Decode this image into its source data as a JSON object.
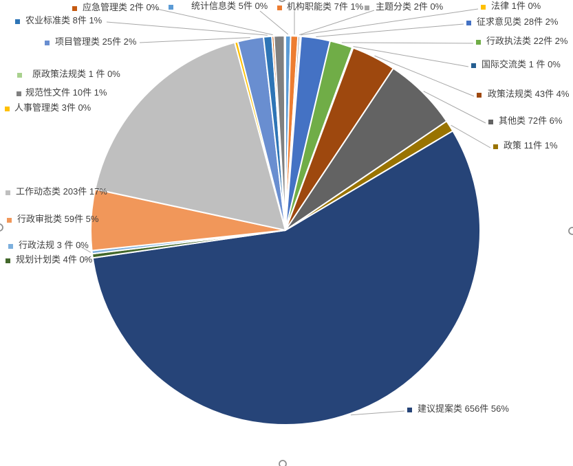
{
  "chart_data": {
    "type": "pie",
    "title": "",
    "unit": "件",
    "total": 1166,
    "direction": "clockwise",
    "start_angle_deg": 0,
    "legend_position": "none",
    "slice_border_color": "#FFFFFF",
    "leader_line_color": "#A6A6A6",
    "label_text_color": "#3F3F3F",
    "series": [
      {
        "name": "统计信息类",
        "value": 5,
        "pct": "0%",
        "label": "统计信息类 5件 0%",
        "color": "#5B9BD5"
      },
      {
        "name": "机构职能类",
        "value": 7,
        "pct": "1%",
        "label": "机构职能类 7件 1%",
        "color": "#ED7D31"
      },
      {
        "name": "主题分类",
        "value": 2,
        "pct": "0%",
        "label": "主题分类 2件 0%",
        "color": "#A5A5A5"
      },
      {
        "name": "法律",
        "value": 1,
        "pct": "0%",
        "label": "法律 1件 0%",
        "color": "#FFC000"
      },
      {
        "name": "征求意见类",
        "value": 28,
        "pct": "2%",
        "label": "征求意见类 28件 2%",
        "color": "#4472C4"
      },
      {
        "name": "行政执法类",
        "value": 22,
        "pct": "2%",
        "label": "行政执法类 22件 2%",
        "color": "#70AD47"
      },
      {
        "name": "国际交流类",
        "value": 1,
        "pct": "0%",
        "label": "国际交流类 1 件 0%",
        "color": "#255E91"
      },
      {
        "name": "政策法规类",
        "value": 43,
        "pct": "4%",
        "label": "政策法规类 43件 4%",
        "color": "#9E480E"
      },
      {
        "name": "其他类",
        "value": 72,
        "pct": "6%",
        "label": "其他类 72件 6%",
        "color": "#636363"
      },
      {
        "name": "政策",
        "value": 11,
        "pct": "1%",
        "label": "政策 11件 1%",
        "color": "#997300"
      },
      {
        "name": "建议提案类",
        "value": 656,
        "pct": "56%",
        "label": "建议提案类 656件 56%",
        "color": "#264478"
      },
      {
        "name": "规划计划类",
        "value": 4,
        "pct": "0%",
        "label": "规划计划类 4件 0%",
        "color": "#43682B"
      },
      {
        "name": "行政法规",
        "value": 3,
        "pct": "0%",
        "label": "行政法规 3 件 0%",
        "color": "#7CAFDD"
      },
      {
        "name": "行政审批类",
        "value": 59,
        "pct": "5%",
        "label": "行政审批类 59件 5%",
        "color": "#F1975A"
      },
      {
        "name": "工作动态类",
        "value": 203,
        "pct": "17%",
        "label": "工作动态类 203件 17%",
        "color": "#BFBFBF"
      },
      {
        "name": "人事管理类",
        "value": 3,
        "pct": "0%",
        "label": "人事管理类 3件 0%",
        "color": "#FFC000"
      },
      {
        "name": "项目管理类",
        "value": 25,
        "pct": "2%",
        "label": "项目管理类 25件 2%",
        "color": "#698ED0"
      },
      {
        "name": "农业标准类",
        "value": 8,
        "pct": "1%",
        "label": "农业标准类 8件 1%",
        "color": "#2E75B6"
      },
      {
        "name": "应急管理类",
        "value": 2,
        "pct": "0%",
        "label": "应急管理类 2件 0%",
        "color": "#C55A11"
      },
      {
        "name": "规范性文件",
        "value": 10,
        "pct": "1%",
        "label": "规范性文件 10件 1%",
        "color": "#808080"
      },
      {
        "name": "原政策法规类",
        "value": 1,
        "pct": "0%",
        "label": "原政策法规类 1 件 0%",
        "color": "#A9D18E"
      }
    ]
  },
  "selection_handles": {
    "color": "#8F8F8F",
    "positions": [
      "top-center",
      "right-middle",
      "bottom-center",
      "left-middle"
    ]
  }
}
